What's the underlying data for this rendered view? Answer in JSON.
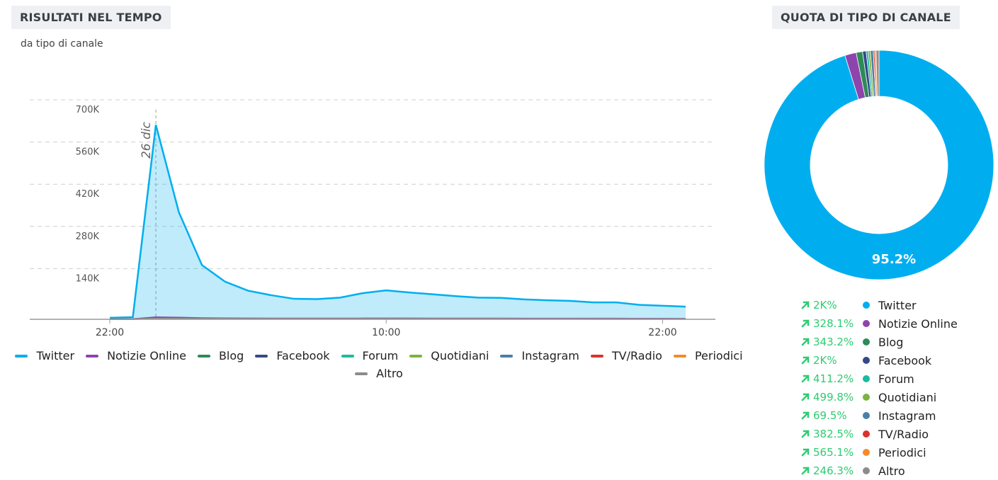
{
  "left_panel": {
    "title": "RISULTATI NEL TEMPO",
    "subtitle": "da tipo di canale"
  },
  "right_panel": {
    "title": "QUOTA DI TIPO DI CANALE"
  },
  "channels": [
    {
      "name": "Twitter",
      "color": "#00aeef",
      "change": "2K%"
    },
    {
      "name": "Notizie Online",
      "color": "#8e44ad",
      "change": "328.1%"
    },
    {
      "name": "Blog",
      "color": "#2e8b57",
      "change": "343.2%"
    },
    {
      "name": "Facebook",
      "color": "#34498a",
      "change": "2K%"
    },
    {
      "name": "Forum",
      "color": "#1abc9c",
      "change": "411.2%"
    },
    {
      "name": "Quotidiani",
      "color": "#7cb342",
      "change": "499.8%"
    },
    {
      "name": "Instagram",
      "color": "#4a7fa8",
      "change": "69.5%"
    },
    {
      "name": "TV/Radio",
      "color": "#d9342b",
      "change": "382.5%"
    },
    {
      "name": "Periodici",
      "color": "#f28c28",
      "change": "565.1%"
    },
    {
      "name": "Altro",
      "color": "#8c8c8c",
      "change": "246.3%"
    }
  ],
  "chart_data": [
    {
      "type": "area",
      "title": "RISULTATI NEL TEMPO",
      "subtitle": "da tipo di canale",
      "x_tick_labels": [
        "22:00",
        "10:00",
        "22:00"
      ],
      "y_tick_labels": [
        "140K",
        "280K",
        "420K",
        "560K",
        "700K"
      ],
      "ylim": [
        0,
        740000
      ],
      "x": [
        0,
        1,
        2,
        3,
        4,
        5,
        6,
        7,
        8,
        9,
        10,
        11,
        12,
        13,
        14,
        15,
        16,
        17,
        18,
        19,
        20,
        21,
        22,
        23,
        24,
        25
      ],
      "x_ticks_at": [
        0,
        12,
        24
      ],
      "annotation": {
        "label": "26 dic",
        "x": 2
      },
      "series": [
        {
          "name": "Twitter",
          "values": [
            5000,
            7000,
            645000,
            355000,
            180000,
            125000,
            95000,
            80000,
            68000,
            67000,
            72000,
            87000,
            96000,
            89000,
            83000,
            77000,
            72000,
            71000,
            66000,
            63000,
            61000,
            56000,
            56000,
            48000,
            45000,
            42000
          ]
        },
        {
          "name": "Notizie Online",
          "values": [
            500,
            800,
            7000,
            6000,
            4000,
            3500,
            3200,
            3000,
            2800,
            2800,
            2900,
            3100,
            3200,
            3100,
            3000,
            2900,
            2800,
            2800,
            2700,
            2600,
            2600,
            2500,
            2500,
            2400,
            2300,
            2200
          ]
        },
        {
          "name": "Blog",
          "values": [
            200,
            300,
            2500,
            2200,
            1800,
            1500,
            1400,
            1300,
            1200,
            1200,
            1250,
            1300,
            1350,
            1300,
            1250,
            1200,
            1150,
            1150,
            1100,
            1100,
            1050,
            1000,
            1000,
            950,
            900,
            900
          ]
        },
        {
          "name": "Altro",
          "values": [
            300,
            400,
            3000,
            2600,
            2200,
            2000,
            1900,
            1800,
            1700,
            1700,
            1750,
            1800,
            1850,
            1800,
            1750,
            1700,
            1650,
            1650,
            1600,
            1600,
            1550,
            1500,
            1500,
            1450,
            1400,
            1400
          ]
        }
      ],
      "grid": true,
      "legend_position": "bottom"
    },
    {
      "type": "pie",
      "title": "QUOTA DI TIPO DI CANALE",
      "donut": true,
      "labels": [
        "Twitter",
        "Notizie Online",
        "Blog",
        "Facebook",
        "Forum",
        "Quotidiani",
        "Instagram",
        "TV/Radio",
        "Periodici",
        "Altro"
      ],
      "values": [
        95.2,
        1.6,
        0.9,
        0.5,
        0.3,
        0.3,
        0.4,
        0.2,
        0.2,
        0.4
      ],
      "shown_label": "95.2%",
      "legend_position": "bottom"
    }
  ]
}
